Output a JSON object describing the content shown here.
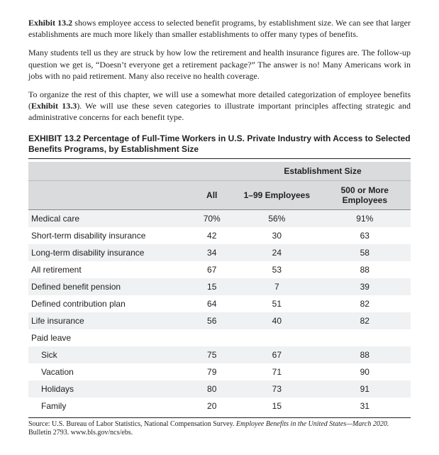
{
  "paragraphs": {
    "p1_a": "Exhibit 13.2",
    "p1_b": " shows employee access to selected benefit programs, by establishment size. We can see that larger establishments are much more likely than smaller establishments to offer many types of benefits.",
    "p2": "Many students tell us they are struck by how low the retirement and health insurance figures are. The follow-up question we get is, “Doesn’t everyone get a retirement package?” The answer is no! Many Americans work in jobs with no paid retirement. Many also receive no health coverage.",
    "p3_a": "To organize the rest of this chapter, we will use a somewhat more detailed categorization of employee benefits (",
    "p3_b": "Exhibit 13.3",
    "p3_c": "). We will use these seven categories to illustrate important principles affecting strategic and administrative concerns for each benefit type."
  },
  "exhibit": {
    "lead": "EXHIBIT 13.2",
    "rest": "  Percentage of Full-Time Workers in U.S. Private Industry with Access to Selected Benefits Programs, by Establishment Size"
  },
  "table": {
    "group_header": "Establishment Size",
    "cols": {
      "all": "All",
      "sm": "1–99 Employees",
      "lg": "500 or More Employees"
    },
    "rows": [
      {
        "label": "Medical care",
        "indent": 0,
        "all": "70%",
        "sm": "56%",
        "lg": "91%"
      },
      {
        "label": "Short-term disability insurance",
        "indent": 0,
        "all": "42",
        "sm": "30",
        "lg": "63"
      },
      {
        "label": "Long-term disability insurance",
        "indent": 0,
        "all": "34",
        "sm": "24",
        "lg": "58"
      },
      {
        "label": "All retirement",
        "indent": 0,
        "all": "67",
        "sm": "53",
        "lg": "88"
      },
      {
        "label": "Defined benefit pension",
        "indent": 0,
        "all": "15",
        "sm": "7",
        "lg": "39"
      },
      {
        "label": "Defined contribution plan",
        "indent": 0,
        "all": "64",
        "sm": "51",
        "lg": "82"
      },
      {
        "label": "Life insurance",
        "indent": 0,
        "all": "56",
        "sm": "40",
        "lg": "82"
      },
      {
        "label": "Paid leave",
        "indent": 0,
        "all": "",
        "sm": "",
        "lg": ""
      },
      {
        "label": "Sick",
        "indent": 1,
        "all": "75",
        "sm": "67",
        "lg": "88"
      },
      {
        "label": "Vacation",
        "indent": 1,
        "all": "79",
        "sm": "71",
        "lg": "90"
      },
      {
        "label": "Holidays",
        "indent": 1,
        "all": "80",
        "sm": "73",
        "lg": "91"
      },
      {
        "label": "Family",
        "indent": 1,
        "all": "20",
        "sm": "15",
        "lg": "31"
      }
    ]
  },
  "source": {
    "a": "Source: U.S. Bureau of Labor Statistics, National Compensation Survey. ",
    "b": "Employee Benefits in the United States—March 2020.",
    "c": " Bulletin 2793. www.bls.gov/ncs/ebs."
  }
}
